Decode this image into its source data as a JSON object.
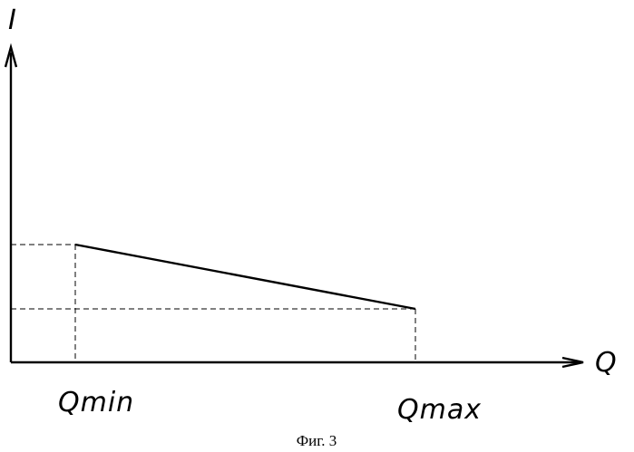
{
  "figure": {
    "y_axis_label": "I",
    "x_axis_label": "Q",
    "x_marks": [
      "Qmin",
      "Qmax"
    ],
    "caption": "Фиг. 3"
  }
}
